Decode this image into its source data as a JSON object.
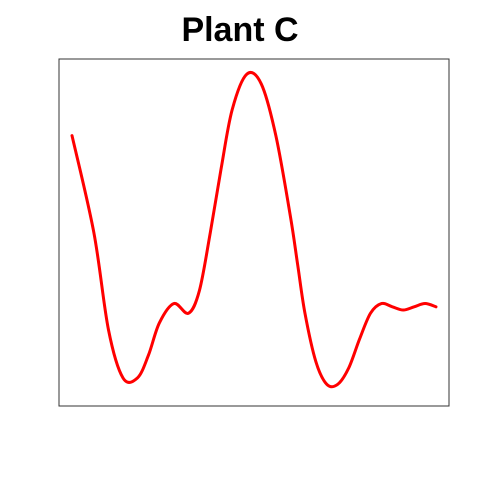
{
  "chart_data": {
    "type": "line",
    "title": "Plant C",
    "xlabel": "",
    "ylabel": "",
    "xlim": [
      0,
      100
    ],
    "ylim": [
      0,
      1
    ],
    "grid": false,
    "series": [
      {
        "color": "#ff0000",
        "x": [
          0,
          6,
          10,
          14,
          18,
          21,
          24,
          28,
          32,
          35,
          38,
          41,
          44,
          48,
          52,
          56,
          60,
          62,
          64,
          67,
          70,
          73,
          76,
          79,
          82,
          85,
          88,
          91,
          94,
          97,
          100
        ],
        "y": [
          0.8,
          0.5,
          0.2,
          0.05,
          0.05,
          0.12,
          0.22,
          0.28,
          0.25,
          0.32,
          0.5,
          0.7,
          0.88,
          0.99,
          0.96,
          0.8,
          0.55,
          0.4,
          0.25,
          0.1,
          0.03,
          0.03,
          0.08,
          0.17,
          0.25,
          0.28,
          0.27,
          0.26,
          0.27,
          0.28,
          0.27
        ]
      }
    ]
  }
}
